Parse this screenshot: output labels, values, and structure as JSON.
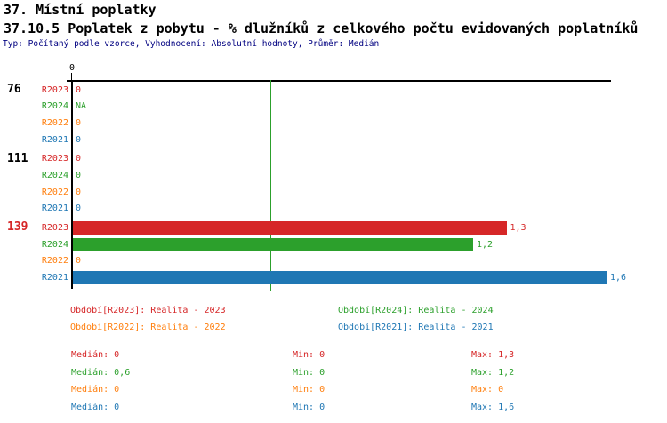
{
  "header": {
    "title": "37. Místní poplatky",
    "subtitle": "37.10.5 Poplatek z pobytu - % dlužníků z celkového počtu evidovaných poplatníků",
    "meta": "Typ: Počítaný podle vzorce, Vyhodnocení: Absolutní hodnoty, Průměr: Medián"
  },
  "chart_data": {
    "type": "bar",
    "orientation": "horizontal",
    "title": "37. Místní poplatky",
    "subtitle": "37.10.5 Poplatek z pobytu - % dlužníků z celkového počtu evidovaných poplatníků",
    "x_axis_tick": "0",
    "xlim": [
      0,
      1.6
    ],
    "grid": false,
    "axis_color": "#000000",
    "series_colors": {
      "R2023": "#d62728",
      "R2024": "#2ca02c",
      "R2022": "#ff7f0e",
      "R2021": "#1f77b4"
    },
    "median_line": {
      "series": "R2024",
      "value": 0.6,
      "color": "#2ca02c"
    },
    "groups": [
      {
        "label": "76",
        "label_color": "#000000",
        "rows": [
          {
            "series": "R2023",
            "display": "0",
            "value": 0
          },
          {
            "series": "R2024",
            "display": "NA",
            "value": null
          },
          {
            "series": "R2022",
            "display": "0",
            "value": 0
          },
          {
            "series": "R2021",
            "display": "0",
            "value": 0
          }
        ]
      },
      {
        "label": "111",
        "label_color": "#000000",
        "rows": [
          {
            "series": "R2023",
            "display": "0",
            "value": 0
          },
          {
            "series": "R2024",
            "display": "0",
            "value": 0
          },
          {
            "series": "R2022",
            "display": "0",
            "value": 0
          },
          {
            "series": "R2021",
            "display": "0",
            "value": 0
          }
        ]
      },
      {
        "label": "139",
        "label_color": "#d62728",
        "rows": [
          {
            "series": "R2023",
            "display": "1,3",
            "value": 1.3
          },
          {
            "series": "R2024",
            "display": "1,2",
            "value": 1.2
          },
          {
            "series": "R2022",
            "display": "0",
            "value": 0
          },
          {
            "series": "R2021",
            "display": "1,6",
            "value": 1.6
          }
        ]
      }
    ]
  },
  "legend": {
    "items": [
      {
        "series": "R2023",
        "label": "Období[R2023]: Realita - 2023"
      },
      {
        "series": "R2024",
        "label": "Období[R2024]: Realita - 2024"
      },
      {
        "series": "R2022",
        "label": "Období[R2022]: Realita - 2022"
      },
      {
        "series": "R2021",
        "label": "Období[R2021]: Realita - 2021"
      }
    ]
  },
  "stats": {
    "rows": [
      {
        "series": "R2023",
        "median": "Medián: 0",
        "min": "Min: 0",
        "max": "Max: 1,3"
      },
      {
        "series": "R2024",
        "median": "Medián: 0,6",
        "min": "Min: 0",
        "max": "Max: 1,2"
      },
      {
        "series": "R2022",
        "median": "Medián: 0",
        "min": "Min: 0",
        "max": "Max: 0"
      },
      {
        "series": "R2021",
        "median": "Medián: 0",
        "min": "Min: 0",
        "max": "Max: 1,6"
      }
    ]
  }
}
